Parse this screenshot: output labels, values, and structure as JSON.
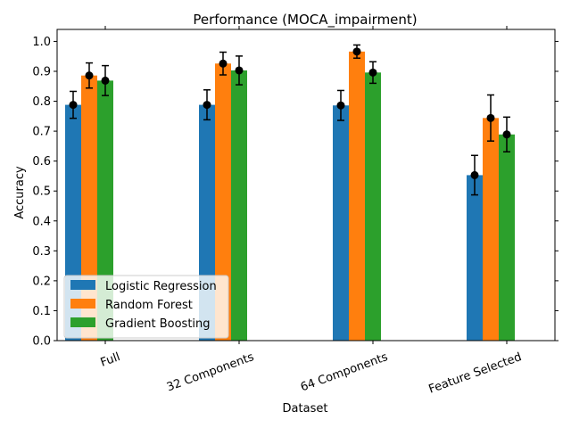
{
  "chart_data": {
    "type": "bar",
    "title": "Performance (MOCA_impairment)",
    "xlabel": "Dataset",
    "ylabel": "Accuracy",
    "categories": [
      "Full",
      "32 Components",
      "64 Components",
      "Feature Selected"
    ],
    "ylim": [
      0,
      1.04
    ],
    "yticks": [
      "0.0",
      "0.1",
      "0.2",
      "0.3",
      "0.4",
      "0.5",
      "0.6",
      "0.7",
      "0.8",
      "0.9",
      "1.0"
    ],
    "legend_position": "lower-left",
    "grid": false,
    "series": [
      {
        "name": "Logistic Regression",
        "color": "#1f77b4",
        "values": [
          0.788,
          0.788,
          0.786,
          0.553
        ],
        "errors": [
          0.045,
          0.05,
          0.05,
          0.066
        ]
      },
      {
        "name": "Random Forest",
        "color": "#ff7f0e",
        "values": [
          0.886,
          0.926,
          0.966,
          0.744
        ],
        "errors": [
          0.042,
          0.038,
          0.022,
          0.077
        ]
      },
      {
        "name": "Gradient Boosting",
        "color": "#2ca02c",
        "values": [
          0.869,
          0.903,
          0.896,
          0.689
        ],
        "errors": [
          0.05,
          0.048,
          0.036,
          0.058
        ]
      }
    ],
    "marker_color": "#000000"
  }
}
